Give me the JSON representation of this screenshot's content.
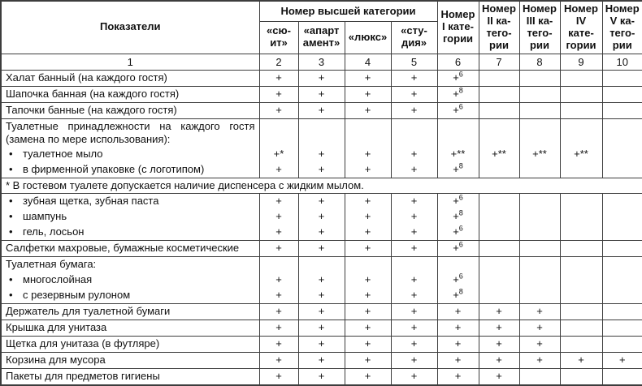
{
  "table": {
    "header": {
      "col1": "Показатели",
      "group": "Номер высшей категории",
      "subs": [
        "«сю-\nит»",
        "«апарт\nамент»",
        "«люкс»",
        "«сту-\nдия»"
      ],
      "singles": [
        "Номер\nI кате-\nгории",
        "Номер\nII ка-\nтего-\nрии",
        "Номер\nIII ка-\nтего-\nрии",
        "Номер\nIV\nкате-\nгории",
        "Номер\nV ка-\nтего-\nрии"
      ]
    },
    "numbers": [
      "1",
      "2",
      "3",
      "4",
      "5",
      "6",
      "7",
      "8",
      "9",
      "10"
    ],
    "rows": [
      {
        "kind": "simple",
        "label": "Халат банный (на каждого гостя)",
        "marks": [
          "+",
          "+",
          "+",
          "+",
          "+^6",
          "",
          "",
          "",
          ""
        ]
      },
      {
        "kind": "simple",
        "label": "Шапочка банная (на каждого гостя)",
        "marks": [
          "+",
          "+",
          "+",
          "+",
          "+^8",
          "",
          "",
          "",
          ""
        ]
      },
      {
        "kind": "simple",
        "label": "Тапочки банные (на каждого гостя)",
        "marks": [
          "+",
          "+",
          "+",
          "+",
          "+^6",
          "",
          "",
          "",
          ""
        ]
      },
      {
        "kind": "block",
        "label": "Туалетные принадлежности на каждого гостя (замена по мере использования):",
        "items": [
          {
            "text": "туалетное мыло",
            "marks": [
              "+*",
              "+",
              "+",
              "+",
              "+**",
              "+**",
              "+**",
              "+**",
              ""
            ]
          },
          {
            "text": "в фирменной упаковке (с логотипом)",
            "marks": [
              "+",
              "+",
              "+",
              "+",
              "+^8",
              "",
              "",
              "",
              ""
            ]
          }
        ]
      },
      {
        "kind": "footnote",
        "label": "* В гостевом туалете допускается наличие диспенсера с жидким мылом."
      },
      {
        "kind": "block",
        "label": null,
        "items": [
          {
            "text": "зубная щетка, зубная паста",
            "marks": [
              "+",
              "+",
              "+",
              "+",
              "+^6",
              "",
              "",
              "",
              ""
            ]
          },
          {
            "text": "шампунь",
            "marks": [
              "+",
              "+",
              "+",
              "+",
              "+^8",
              "",
              "",
              "",
              ""
            ]
          },
          {
            "text": "гель, лосьон",
            "marks": [
              "+",
              "+",
              "+",
              "+",
              "+^6",
              "",
              "",
              "",
              ""
            ]
          }
        ]
      },
      {
        "kind": "simple",
        "label": "Салфетки махровые, бумажные косметические",
        "marks": [
          "+",
          "+",
          "+",
          "+",
          "+^6",
          "",
          "",
          "",
          ""
        ]
      },
      {
        "kind": "block",
        "label": "Туалетная бумага:",
        "items": [
          {
            "text": "многослойная",
            "marks": [
              "+",
              "+",
              "+",
              "+",
              "+^6",
              "",
              "",
              "",
              ""
            ]
          },
          {
            "text": "с резервным рулоном",
            "marks": [
              "+",
              "+",
              "+",
              "+",
              "+^8",
              "",
              "",
              "",
              ""
            ]
          }
        ]
      },
      {
        "kind": "simple",
        "label": "Держатель для туалетной бумаги",
        "marks": [
          "+",
          "+",
          "+",
          "+",
          "+",
          "+",
          "+",
          "",
          ""
        ]
      },
      {
        "kind": "simple",
        "label": "Крышка для унитаза",
        "marks": [
          "+",
          "+",
          "+",
          "+",
          "+",
          "+",
          "+",
          "",
          ""
        ]
      },
      {
        "kind": "simple",
        "label": "Щетка для унитаза (в футляре)",
        "marks": [
          "+",
          "+",
          "+",
          "+",
          "+",
          "+",
          "+",
          "",
          ""
        ]
      },
      {
        "kind": "simple",
        "label": "Корзина для мусора",
        "marks": [
          "+",
          "+",
          "+",
          "+",
          "+",
          "+",
          "+",
          "+",
          "+"
        ]
      },
      {
        "kind": "simple",
        "label": "Пакеты для предметов гигиены",
        "marks": [
          "+",
          "+",
          "+",
          "+",
          "+",
          "+",
          "",
          "",
          ""
        ]
      }
    ]
  }
}
